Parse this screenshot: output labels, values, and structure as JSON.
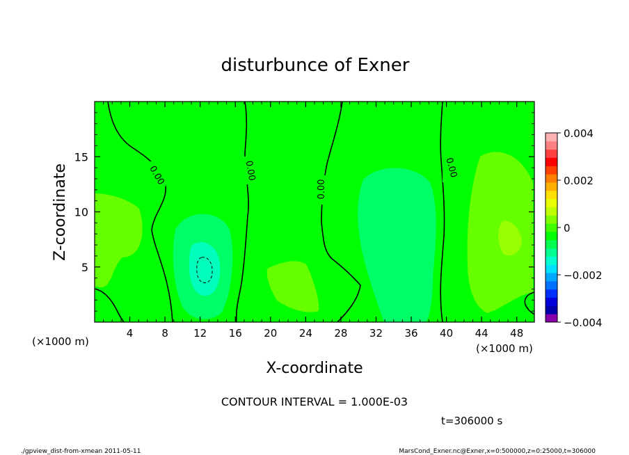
{
  "chart_data": {
    "type": "heatmap",
    "title": "disturbunce of Exner",
    "xlabel": "X-coordinate",
    "ylabel": "Z-coordinate",
    "x_unit": "(×1000 m)",
    "y_unit": "(×1000 m)",
    "xlim": [
      0,
      50
    ],
    "ylim": [
      0,
      20
    ],
    "x_ticks": [
      4,
      8,
      12,
      16,
      20,
      24,
      28,
      32,
      36,
      40,
      44,
      48
    ],
    "y_ticks": [
      5,
      10,
      15
    ],
    "contour_label": "0.00",
    "contour_interval": "CONTOUR INTERVAL = 1.000E-03",
    "time_label": "t=306000 s",
    "colorbar": {
      "min": -0.004,
      "max": 0.004,
      "tick_values": [
        0.004,
        0.002,
        0,
        -0.002,
        -0.004
      ],
      "tick_labels": [
        "0.004",
        "0.002",
        "0",
        "−0.002",
        "−0.004"
      ],
      "colors": [
        "#8800aa",
        "#0000aa",
        "#0000dd",
        "#0030ff",
        "#0070ff",
        "#00a8ff",
        "#00e0ff",
        "#00ffd0",
        "#00ff90",
        "#00ff50",
        "#00ff00",
        "#40ff00",
        "#80ff00",
        "#c0ff00",
        "#e8ff00",
        "#ffe000",
        "#ffb000",
        "#ff8000",
        "#ff4000",
        "#ff0000",
        "#ff4040",
        "#ff8080",
        "#ffb0b0"
      ]
    },
    "colors": {
      "background": "#00ff00",
      "light_positive": "#66ff00",
      "positive": "#99ff00",
      "slight_negative": "#00ff66",
      "negative": "#00ffbb",
      "contour": "#000000"
    }
  },
  "footer": {
    "left": "./gpview_dist-from-xmean  2011-05-11",
    "right": "MarsCond_Exner.nc@Exner,x=0:500000,z=0:25000,t=306000"
  }
}
